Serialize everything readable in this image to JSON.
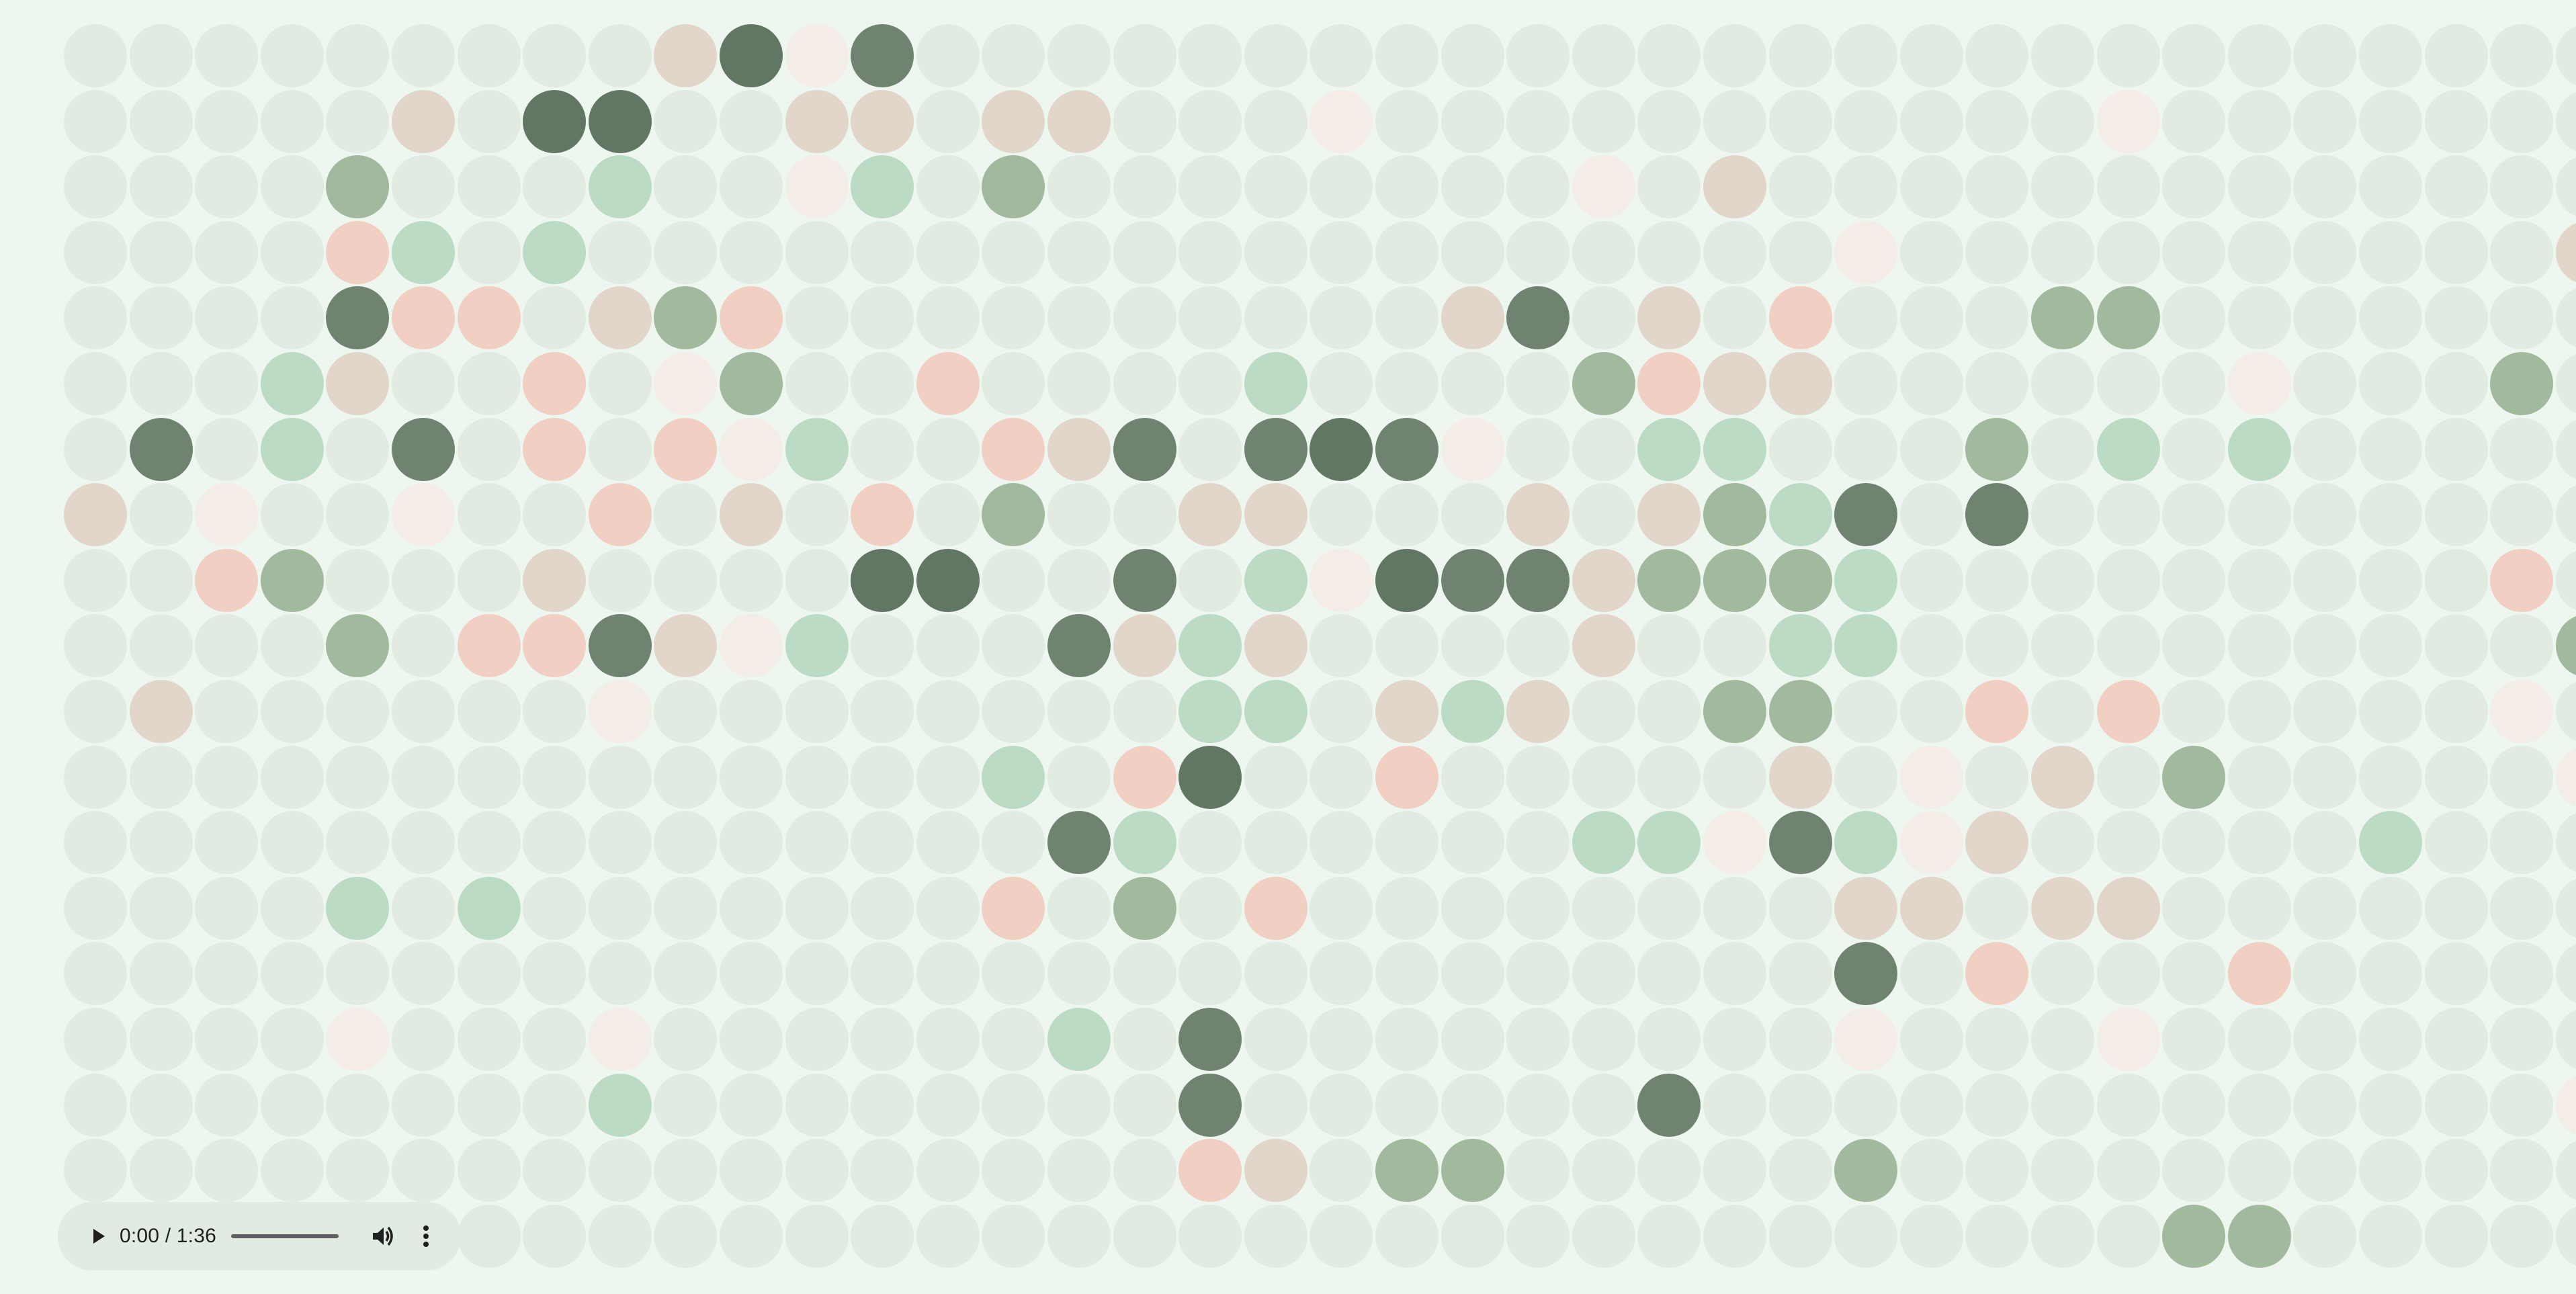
{
  "palette": {
    "e": "#e1ebe2",
    "t": "#e1d6c9",
    "p": "#f2cfc3",
    "l": "#f4ece6",
    "m": "#bcdbc4",
    "s": "#a1b99c",
    "g": "#6f8370",
    "d": "#627763"
  },
  "grid_rows": [
    "eeeeeeeeetdlgeeeeeeeeeeeeeeeeeeeeeeeeee",
    "eeeeeteddeettetteeeleeeeeeeeeeeleeeeeee",
    "eeeeseeemeelmeseeeeeeeeleteeeeeeeeeeeee",
    "eeeepmemeeeeeeeeeeeeeeeeeeeleeeeeeeeeet",
    "eeeegppetspeeeeeeeeeetgetepeeesseeeeeee",
    "eeemteepelseepeeeemeeeesptteeeeeeleeese",
    "egemegepeplmeeptgegdgleemmeeesememeeeee",
    "teleeleepetepeseetteeetetsmgegeeeeeeeee",
    "eepseeeteeeeddeegemldggtsssmeeeeeeeeepe",
    "eeeeseppgtlmeeegtmteeeeteemmeeeeeeeeeese",
    "eteeeeeeleeeeeeeemmetmteesseepepeeeeele",
    "eeeeeeeeeeeeeemepdeepeeeeeteleteseeeeel",
    "eeeeeeeeeeeeeeegmeeeeeemmlgmlteeeeemeee",
    "eeeememeeeeeeepesepeeeeeeeettetteeeeeee",
    "eeeeeeeeeeeeeeeeeeeeeeeeeeegepeeepeeeee",
    "eeeeleeeleeeeeemegeeeeeeeeeleeeleeeeeee",
    "eeeeeeeemeeeeeeeegeeeeeegeeeeeeeeeeeeel",
    "eeeeeeeeeeeeeeeeeptesseeeeeseeeeeeeeeee",
    "eeeeeeeeeeeeeeeeeeeeeeeeeeeeeeeesseeeee"
  ],
  "player": {
    "time_display": "0:00 / 1:36",
    "progress": 0,
    "play_icon": "play-icon",
    "volume_icon": "volume-icon",
    "more_icon": "more-vert-icon"
  }
}
